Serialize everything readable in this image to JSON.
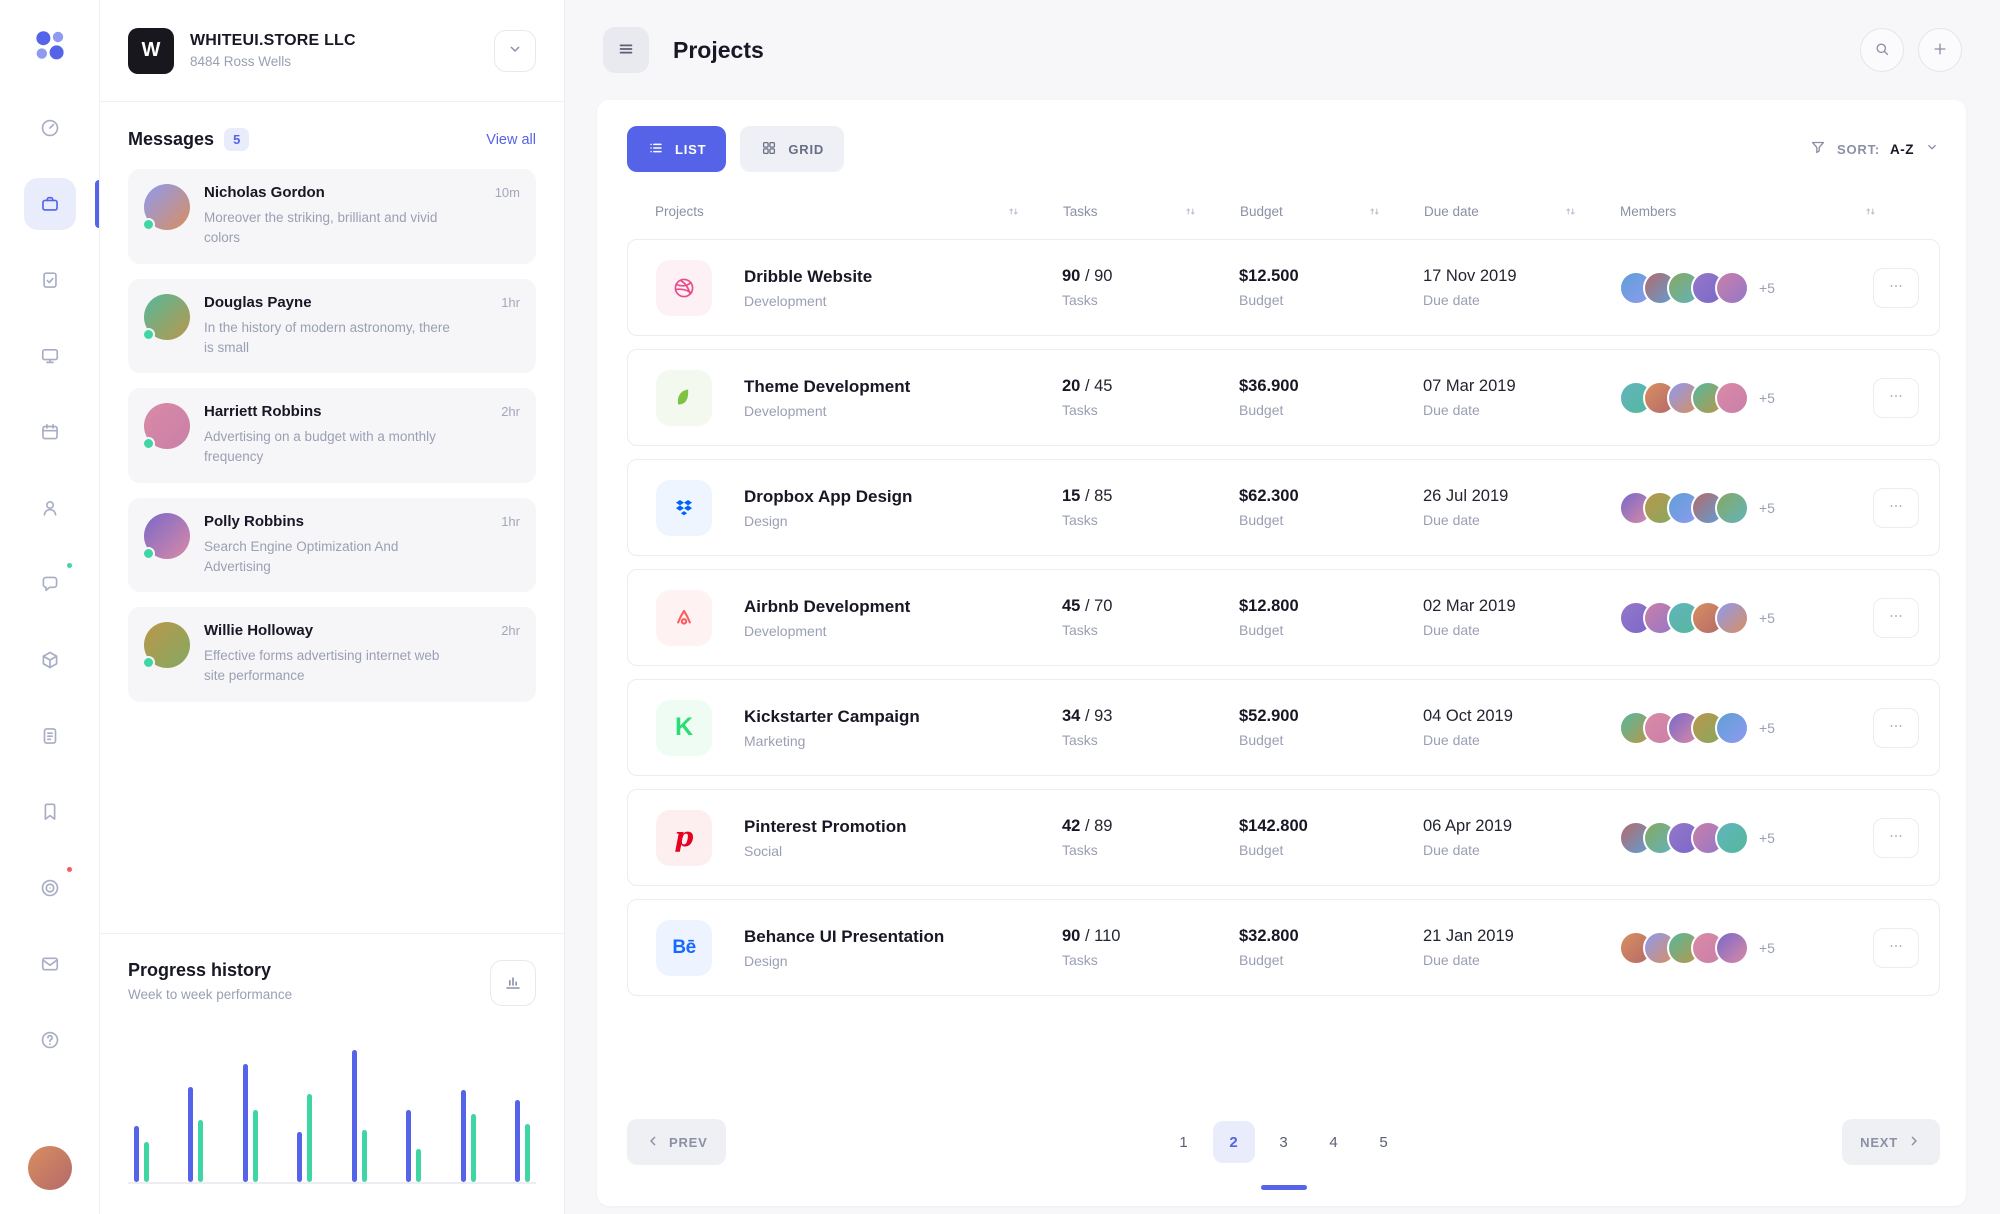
{
  "colors": {
    "accent": "#5463e8",
    "green": "#3fd6a3",
    "red": "#fc5a5a"
  },
  "sidebar": {
    "items": [
      {
        "name": "sidebar-item-dashboard",
        "icon": "dashboard"
      },
      {
        "name": "sidebar-item-projects",
        "icon": "briefcase",
        "active": true
      },
      {
        "name": "sidebar-item-tasks",
        "icon": "tasks"
      },
      {
        "name": "sidebar-item-devices",
        "icon": "monitor"
      },
      {
        "name": "sidebar-item-calendar",
        "icon": "calendar"
      },
      {
        "name": "sidebar-item-team",
        "icon": "users"
      },
      {
        "name": "sidebar-item-chat",
        "icon": "chat",
        "dot": "#3fd6a3"
      },
      {
        "name": "sidebar-item-products",
        "icon": "package"
      },
      {
        "name": "sidebar-item-notes",
        "icon": "notes"
      },
      {
        "name": "sidebar-item-bookmarks",
        "icon": "bookmark"
      },
      {
        "name": "sidebar-item-goals",
        "icon": "target",
        "dot": "#fc5a5a"
      },
      {
        "name": "sidebar-item-mail",
        "icon": "mail"
      },
      {
        "name": "sidebar-item-help",
        "icon": "help"
      }
    ]
  },
  "company": {
    "initial": "W",
    "name": "WHITEUI.STORE LLC",
    "address": "8484 Ross Wells"
  },
  "messages": {
    "title": "Messages",
    "badge": "5",
    "view_all": "View all",
    "items": [
      {
        "name": "Nicholas Gordon",
        "time": "10m",
        "preview": "Moreover the striking, brilliant and vivid colors",
        "online": true
      },
      {
        "name": "Douglas Payne",
        "time": "1hr",
        "preview": "In the history of modern astronomy, there is small",
        "online": true
      },
      {
        "name": "Harriett Robbins",
        "time": "2hr",
        "preview": "Advertising on a budget with a monthly frequency",
        "online": true
      },
      {
        "name": "Polly Robbins",
        "time": "1hr",
        "preview": "Search Engine Optimization And Advertising",
        "online": true
      },
      {
        "name": "Willie Holloway",
        "time": "2hr",
        "preview": "Effective forms advertising internet web site performance",
        "online": true
      }
    ]
  },
  "progress": {
    "title": "Progress history",
    "subtitle": "Week to week performance",
    "chart": {
      "type": "bar",
      "groups": [
        {
          "a": 56,
          "b": 40
        },
        {
          "a": 95,
          "b": 62
        },
        {
          "a": 118,
          "b": 72
        },
        {
          "a": 50,
          "b": 88
        },
        {
          "a": 132,
          "b": 52
        },
        {
          "a": 72,
          "b": 33
        },
        {
          "a": 92,
          "b": 68
        },
        {
          "a": 82,
          "b": 58
        }
      ]
    }
  },
  "header": {
    "title": "Projects"
  },
  "toolbar": {
    "list": "LIST",
    "grid": "GRID",
    "sort_label": "SORT:",
    "sort_value": "A-Z"
  },
  "table": {
    "headers": [
      {
        "label": "Projects",
        "wide": true
      },
      {
        "label": "Tasks"
      },
      {
        "label": "Budget"
      },
      {
        "label": "Due date"
      },
      {
        "label": "Members"
      }
    ],
    "sub": {
      "tasks": "Tasks",
      "budget": "Budget",
      "due": "Due date"
    },
    "rows": [
      {
        "icon": "dribbble",
        "icon_color": "#ea4c89",
        "icon_bg": "#fdf1f6",
        "name": "Dribble Website",
        "category": "Development",
        "tasks_done": "90",
        "tasks_rest": "/ 90",
        "budget": "$12.500",
        "due": "17 Nov 2019",
        "extra": "+5"
      },
      {
        "icon": "envato",
        "icon_color": "#7ec242",
        "icon_bg": "#f3f9ee",
        "name": "Theme Development",
        "category": "Development",
        "tasks_done": "20",
        "tasks_rest": "/ 45",
        "budget": "$36.900",
        "due": "07 Mar 2019",
        "extra": "+5"
      },
      {
        "icon": "dropbox",
        "icon_color": "#0061ff",
        "icon_bg": "#eef5ff",
        "name": "Dropbox App Design",
        "category": "Design",
        "tasks_done": "15",
        "tasks_rest": "/ 85",
        "budget": "$62.300",
        "due": "26 Jul 2019",
        "extra": "+5"
      },
      {
        "icon": "airbnb",
        "icon_color": "#ff5a5f",
        "icon_bg": "#fff2f3",
        "name": "Airbnb Development",
        "category": "Development",
        "tasks_done": "45",
        "tasks_rest": "/ 70",
        "budget": "$12.800",
        "due": "02 Mar 2019",
        "extra": "+5"
      },
      {
        "icon": "kickstarter",
        "icon_color": "#2bde73",
        "icon_bg": "#eefcf4",
        "name": "Kickstarter Campaign",
        "category": "Marketing",
        "tasks_done": "34",
        "tasks_rest": "/ 93",
        "budget": "$52.900",
        "due": "04 Oct 2019",
        "extra": "+5"
      },
      {
        "icon": "pinterest",
        "icon_color": "#e60023",
        "icon_bg": "#fdeef0",
        "name": "Pinterest Promotion",
        "category": "Social",
        "tasks_done": "42",
        "tasks_rest": "/ 89",
        "budget": "$142.800",
        "due": "06 Apr 2019",
        "extra": "+5"
      },
      {
        "icon": "behance",
        "icon_color": "#1769ff",
        "icon_bg": "#eef4ff",
        "name": "Behance UI Presentation",
        "category": "Design",
        "tasks_done": "90",
        "tasks_rest": "/ 110",
        "budget": "$32.800",
        "due": "21 Jan 2019",
        "extra": "+5"
      }
    ]
  },
  "pagination": {
    "prev": "PREV",
    "next": "NEXT",
    "pages": [
      {
        "label": "1"
      },
      {
        "label": "2",
        "active": true
      },
      {
        "label": "3"
      },
      {
        "label": "4"
      },
      {
        "label": "5"
      }
    ]
  }
}
